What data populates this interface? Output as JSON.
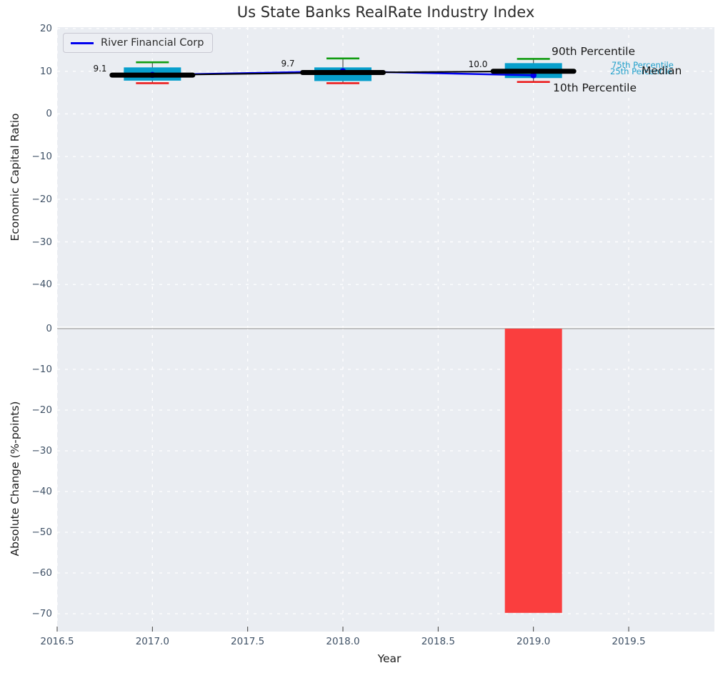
{
  "title": "Us State Banks RealRate Industry Index",
  "legend": {
    "label": "River Financial Corp"
  },
  "annotations": {
    "p90": "90th Percentile",
    "p75": "75th Percentile",
    "p25": "25th Percentile",
    "median": "Median",
    "p10": "10th Percentile"
  },
  "axes": {
    "top": {
      "ylabel": "Economic Capital Ratio",
      "ytick_labels": [
        "20",
        "10",
        "0",
        "−10",
        "−20",
        "−30",
        "−40"
      ],
      "ytick_values": [
        20,
        10,
        0,
        -10,
        -20,
        -30,
        -40
      ]
    },
    "bottom": {
      "ylabel": "Absolute Change (%-points)",
      "xlabel": "Year",
      "ytick_labels": [
        "0",
        "−10",
        "−20",
        "−30",
        "−40",
        "−50",
        "−60",
        "−70"
      ],
      "ytick_values": [
        0,
        -10,
        -20,
        -30,
        -40,
        -50,
        -60,
        -70
      ],
      "xtick_labels": [
        "2016.5",
        "2017.0",
        "2017.5",
        "2018.0",
        "2018.5",
        "2019.0",
        "2019.5"
      ],
      "xtick_values": [
        2016.5,
        2017.0,
        2017.5,
        2018.0,
        2018.5,
        2019.0,
        2019.5
      ]
    }
  },
  "chart_data": [
    {
      "type": "box",
      "title": "Us State Banks RealRate Industry Index",
      "xlabel": "Year",
      "ylabel": "Economic Capital Ratio",
      "xlim": [
        2016.5,
        2019.95
      ],
      "ylim": [
        -50,
        20
      ],
      "grid": true,
      "legend_position": "upper left",
      "categories": [
        2017,
        2018,
        2019
      ],
      "boxes": [
        {
          "x": 2017,
          "p10": 7.2,
          "p25": 7.8,
          "median": 9.1,
          "p75": 10.9,
          "p90": 12.1
        },
        {
          "x": 2018,
          "p10": 7.2,
          "p25": 7.7,
          "median": 9.7,
          "p75": 10.9,
          "p90": 13.0
        },
        {
          "x": 2019,
          "p10": 7.5,
          "p25": 8.4,
          "median": 10.0,
          "p75": 11.9,
          "p90": 12.9
        }
      ],
      "median_labels": [
        "9.1",
        "9.7",
        "10.0"
      ],
      "median_values": [
        9.1,
        9.7,
        10.0
      ],
      "series": [
        {
          "name": "River Financial Corp",
          "x": [
            2017,
            2018,
            2019
          ],
          "values": [
            9.15,
            10.0,
            9.05
          ]
        }
      ]
    },
    {
      "type": "bar",
      "xlabel": "Year",
      "ylabel": "Absolute Change (%-points)",
      "xlim": [
        2016.5,
        2019.95
      ],
      "ylim": [
        -74.5,
        0.4
      ],
      "grid": true,
      "x": [
        2019
      ],
      "values": [
        -69.8
      ],
      "bar_width": 0.3
    }
  ],
  "colors": {
    "figure_bg": "#ffffff",
    "axes_bg": "#eaedf2",
    "grid": "#ffffff",
    "box_fill": "#089fcc",
    "whisker": "#555555",
    "cap_top": "#109c10",
    "cap_bottom": "#ec1c1c",
    "median_line": "#000000",
    "series_line": "#0000ee",
    "bar_fill": "#fa3e3e",
    "zero_line": "#b0b0b0",
    "tick_text": "#3f5166",
    "percentile_text": "#1f9fca"
  }
}
